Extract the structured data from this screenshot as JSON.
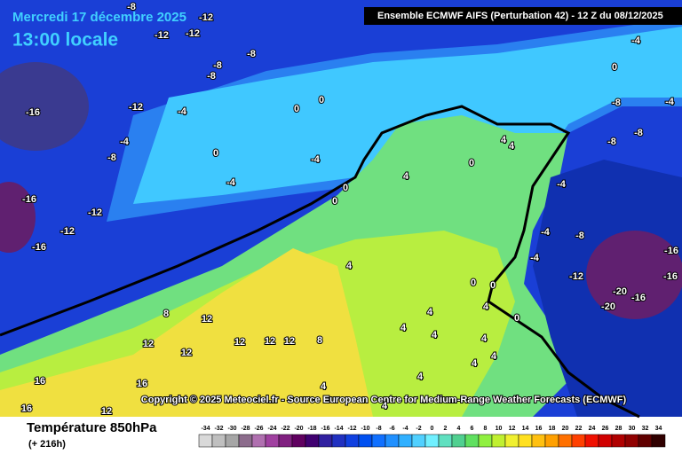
{
  "header": {
    "date": "Mercredi 17 décembre 2025",
    "time": "13:00 locale",
    "model": "Ensemble ECMWF AIFS  (Perturbation 42)  - 12 Z du 08/12/2025"
  },
  "copyright": "Copyright © 2025 Meteociel.fr - Source European Centre for Medium-Range Weather Forecasts (ECMWF)",
  "footer": {
    "title": "Température 850hPa",
    "lead": "(+ 216h)"
  },
  "scale": {
    "ticks": [
      -34,
      -32,
      -30,
      -28,
      -26,
      -24,
      -22,
      -20,
      -18,
      -16,
      -14,
      -12,
      -10,
      -8,
      -6,
      -4,
      -2,
      0,
      2,
      4,
      6,
      8,
      10,
      12,
      14,
      16,
      18,
      20,
      22,
      24,
      26,
      28,
      30,
      32,
      34
    ],
    "colors": [
      "#d9d9d9",
      "#bfbfbf",
      "#a6a6a6",
      "#8c6c8c",
      "#b070b0",
      "#a040a0",
      "#802080",
      "#600060",
      "#400070",
      "#3020a0",
      "#2030c0",
      "#1040e0",
      "#0050f0",
      "#1070ff",
      "#2090ff",
      "#30b0ff",
      "#50d0ff",
      "#70f0ff",
      "#60e0c0",
      "#50d090",
      "#60e060",
      "#90f040",
      "#c0f030",
      "#f0f030",
      "#ffe020",
      "#ffc010",
      "#ffa000",
      "#ff7000",
      "#ff4000",
      "#f01000",
      "#d00000",
      "#b00000",
      "#900000",
      "#600000",
      "#300000"
    ]
  },
  "map_labels": [
    -8,
    -12,
    -12,
    -12,
    -8,
    -8,
    -8,
    -16,
    -12,
    -4,
    -4,
    -8,
    0,
    -4,
    -4,
    0,
    0,
    -16,
    -12,
    -12,
    -16,
    0,
    0,
    4,
    4,
    4,
    0,
    -4,
    0,
    -8,
    -4,
    -8,
    -8,
    -4,
    -4,
    -8,
    -4,
    -12,
    -16,
    -16,
    -20,
    -16,
    -20,
    0,
    0,
    0,
    4,
    8,
    12,
    12,
    12,
    12,
    12,
    8,
    12,
    4,
    4,
    4,
    4,
    4,
    4,
    4,
    4,
    4,
    16,
    16,
    16,
    12,
    4
  ]
}
